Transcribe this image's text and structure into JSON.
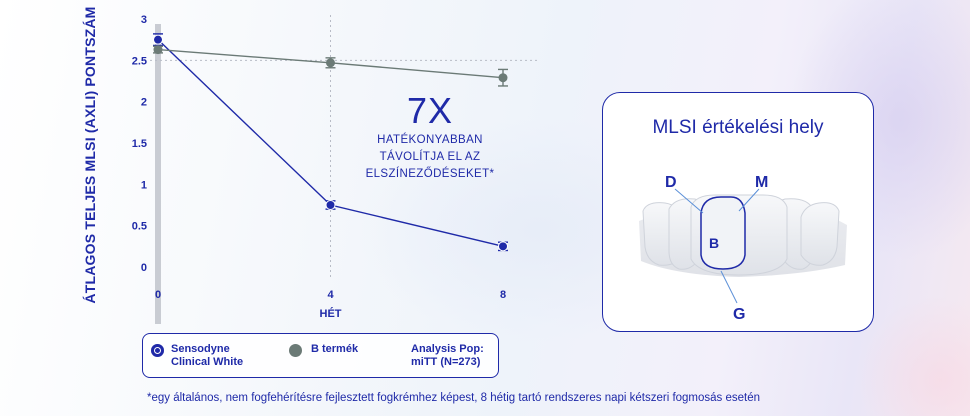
{
  "chart_data": {
    "type": "line",
    "ylabel": "ÁTLAGOS TELJES MLSI (AXLI) PONTSZÁM",
    "xlabel": "HÉT",
    "x": [
      0,
      4,
      8
    ],
    "x_ticks": [
      "0",
      "4",
      "8"
    ],
    "y_ticks": [
      "0",
      "0.5",
      "1",
      "1.5",
      "2",
      "2.5",
      "3"
    ],
    "ylim": [
      0,
      3
    ],
    "xlim": [
      0,
      8
    ],
    "grid": "dotted vertical and horizontal lines at x=4 and y=2.5",
    "series": [
      {
        "name": "Sensodyne Clinical White",
        "color": "#1f2aa8",
        "values": [
          2.75,
          0.75,
          0.25
        ],
        "error": [
          0.07,
          0.05,
          0.05
        ]
      },
      {
        "name": "B termék",
        "color": "#6b7a76",
        "values": [
          2.63,
          2.47,
          2.29
        ],
        "error": [
          0.04,
          0.06,
          0.1
        ]
      }
    ],
    "annotation": {
      "big": "7X",
      "lines": [
        "HATÉKONYABBAN",
        "TÁVOLÍTJA EL AZ",
        "ELSZÍNEZŐDÉSEKET*"
      ]
    }
  },
  "legend": {
    "sensodyne_line1": "Sensodyne",
    "sensodyne_line2": "Clinical White",
    "b_product": "B termék",
    "analysis_line1": "Analysis Pop:",
    "analysis_line2": "miTT (N=273)"
  },
  "footnote": "*egy általános, nem fogfehérítésre fejlesztett fogkrémhez képest, 8 hétig tartó rendszeres napi kétszeri fogmosás esetén",
  "mlsi": {
    "title": "MLSI értékelési hely",
    "labels": {
      "d": "D",
      "m": "M",
      "b": "B",
      "g": "G"
    }
  },
  "colors": {
    "brand_blue": "#1f2aa8",
    "grey_series": "#6b7a76"
  }
}
